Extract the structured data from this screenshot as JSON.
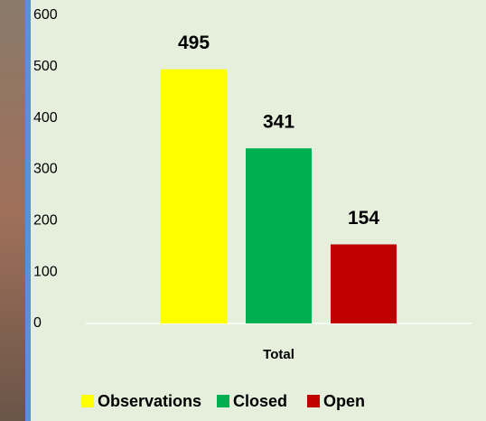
{
  "chart_data": {
    "type": "bar",
    "categories": [
      "Total"
    ],
    "series": [
      {
        "name": "Observations",
        "color": "#ffff00",
        "values": [
          495
        ]
      },
      {
        "name": "Closed",
        "color": "#00b050",
        "values": [
          341
        ]
      },
      {
        "name": "Open",
        "color": "#c00000",
        "values": [
          154
        ]
      }
    ],
    "ylim": [
      0,
      600
    ],
    "yticks": [
      0,
      100,
      200,
      300,
      400,
      500,
      600
    ],
    "grid": false,
    "legend": "bottom"
  }
}
